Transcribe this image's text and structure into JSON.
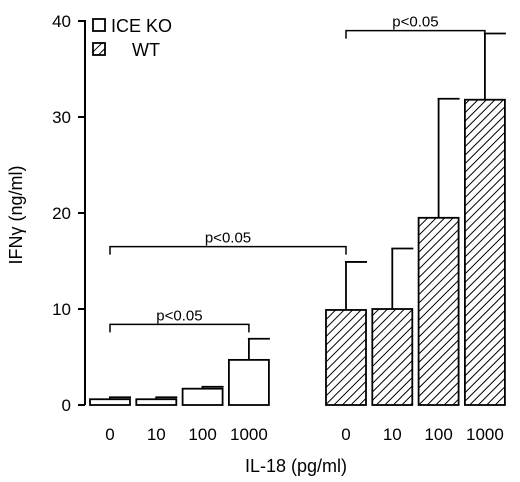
{
  "chart_data": {
    "type": "bar",
    "xlabel": "IL-18 (pg/ml)",
    "ylabel": "IFNγ (ng/ml)",
    "ylim": [
      0,
      40
    ],
    "yticks": [
      0,
      10,
      20,
      30,
      40
    ],
    "categories": [
      "0",
      "10",
      "100",
      "1000"
    ],
    "series": [
      {
        "name": "ICE KO",
        "pattern": "open",
        "values": [
          0.6,
          0.6,
          1.7,
          4.7
        ],
        "errors": [
          0.2,
          0.2,
          0.2,
          2.2
        ]
      },
      {
        "name": "WT",
        "pattern": "hatched",
        "values": [
          9.9,
          10.0,
          19.5,
          31.8
        ],
        "errors": [
          5.0,
          6.3,
          12.4,
          6.9
        ]
      }
    ],
    "annotations": [
      {
        "text": "p<0.05",
        "from": [
          0,
          0
        ],
        "to": [
          0,
          3
        ],
        "y": 8.4
      },
      {
        "text": "p<0.05",
        "from": [
          0,
          0
        ],
        "to": [
          1,
          0
        ],
        "y": 16.5
      },
      {
        "text": "p<0.05",
        "from": [
          1,
          0
        ],
        "to": [
          1,
          3
        ],
        "y": 39.0
      }
    ],
    "legend_position": "top-left",
    "grid": false,
    "colors": {
      "bar_fill": "#ffffff",
      "stroke": "#000000"
    }
  }
}
